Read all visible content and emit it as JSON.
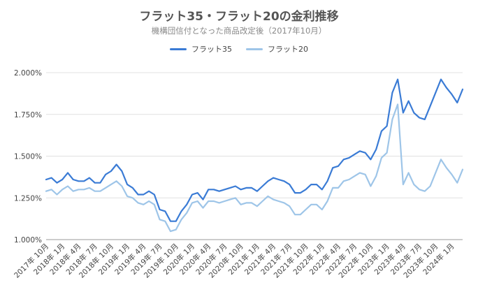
{
  "chart_data": {
    "type": "line",
    "title": "フラット35・フラット20の金利推移",
    "subtitle": "機構団信付となった商品改定後（2017年10月）",
    "xlabel": "",
    "ylabel": "",
    "ylim": [
      1.0,
      2.0
    ],
    "yticks": [
      "1.000%",
      "1.250%",
      "1.500%",
      "1.750%",
      "2.000%"
    ],
    "ytick_values": [
      1.0,
      1.25,
      1.5,
      1.75,
      2.0
    ],
    "grid": true,
    "legend_position": "top",
    "x_tick_labels": [
      "2017年 10月",
      "2018年 1月",
      "2018年 4月",
      "2018年 7月",
      "2018年 10月",
      "2019年 1月",
      "2019年 4月",
      "2019年 7月",
      "2019年 10月",
      "2020年 1月",
      "2020年 4月",
      "2020年 7月",
      "2020年 10月",
      "2021年 1月",
      "2021年 4月",
      "2021年 7月",
      "2021年 10月",
      "2022年 1月",
      "2022年 4月",
      "2022年 7月",
      "2022年 10月",
      "2023年 1月",
      "2023年 4月",
      "2023年 7月",
      "2023年 10月",
      "2024年 1月"
    ],
    "series": [
      {
        "name": "フラット35",
        "color": "#3a7bd5",
        "values": [
          1.36,
          1.37,
          1.34,
          1.36,
          1.4,
          1.36,
          1.35,
          1.35,
          1.37,
          1.34,
          1.34,
          1.39,
          1.41,
          1.45,
          1.41,
          1.33,
          1.31,
          1.27,
          1.27,
          1.29,
          1.27,
          1.18,
          1.17,
          1.11,
          1.11,
          1.17,
          1.21,
          1.27,
          1.28,
          1.24,
          1.3,
          1.3,
          1.29,
          1.3,
          1.31,
          1.32,
          1.3,
          1.31,
          1.31,
          1.29,
          1.32,
          1.35,
          1.37,
          1.36,
          1.35,
          1.33,
          1.28,
          1.28,
          1.3,
          1.33,
          1.33,
          1.3,
          1.35,
          1.43,
          1.44,
          1.48,
          1.49,
          1.51,
          1.53,
          1.52,
          1.48,
          1.54,
          1.65,
          1.68,
          1.88,
          1.96,
          1.76,
          1.83,
          1.76,
          1.73,
          1.72,
          1.8,
          1.88,
          1.96,
          1.91,
          1.87,
          1.82,
          1.9
        ]
      },
      {
        "name": "フラット20",
        "color": "#9ec5e8",
        "values": [
          1.29,
          1.3,
          1.27,
          1.3,
          1.32,
          1.29,
          1.3,
          1.3,
          1.31,
          1.29,
          1.29,
          1.31,
          1.33,
          1.35,
          1.32,
          1.26,
          1.25,
          1.22,
          1.21,
          1.23,
          1.21,
          1.12,
          1.11,
          1.05,
          1.06,
          1.12,
          1.16,
          1.22,
          1.23,
          1.19,
          1.23,
          1.23,
          1.22,
          1.23,
          1.24,
          1.25,
          1.21,
          1.22,
          1.22,
          1.2,
          1.23,
          1.26,
          1.24,
          1.23,
          1.22,
          1.2,
          1.15,
          1.15,
          1.18,
          1.21,
          1.21,
          1.18,
          1.23,
          1.31,
          1.31,
          1.35,
          1.36,
          1.38,
          1.4,
          1.39,
          1.32,
          1.38,
          1.49,
          1.52,
          1.72,
          1.81,
          1.33,
          1.4,
          1.33,
          1.3,
          1.29,
          1.32,
          1.4,
          1.48,
          1.43,
          1.39,
          1.34,
          1.42
        ]
      }
    ]
  }
}
